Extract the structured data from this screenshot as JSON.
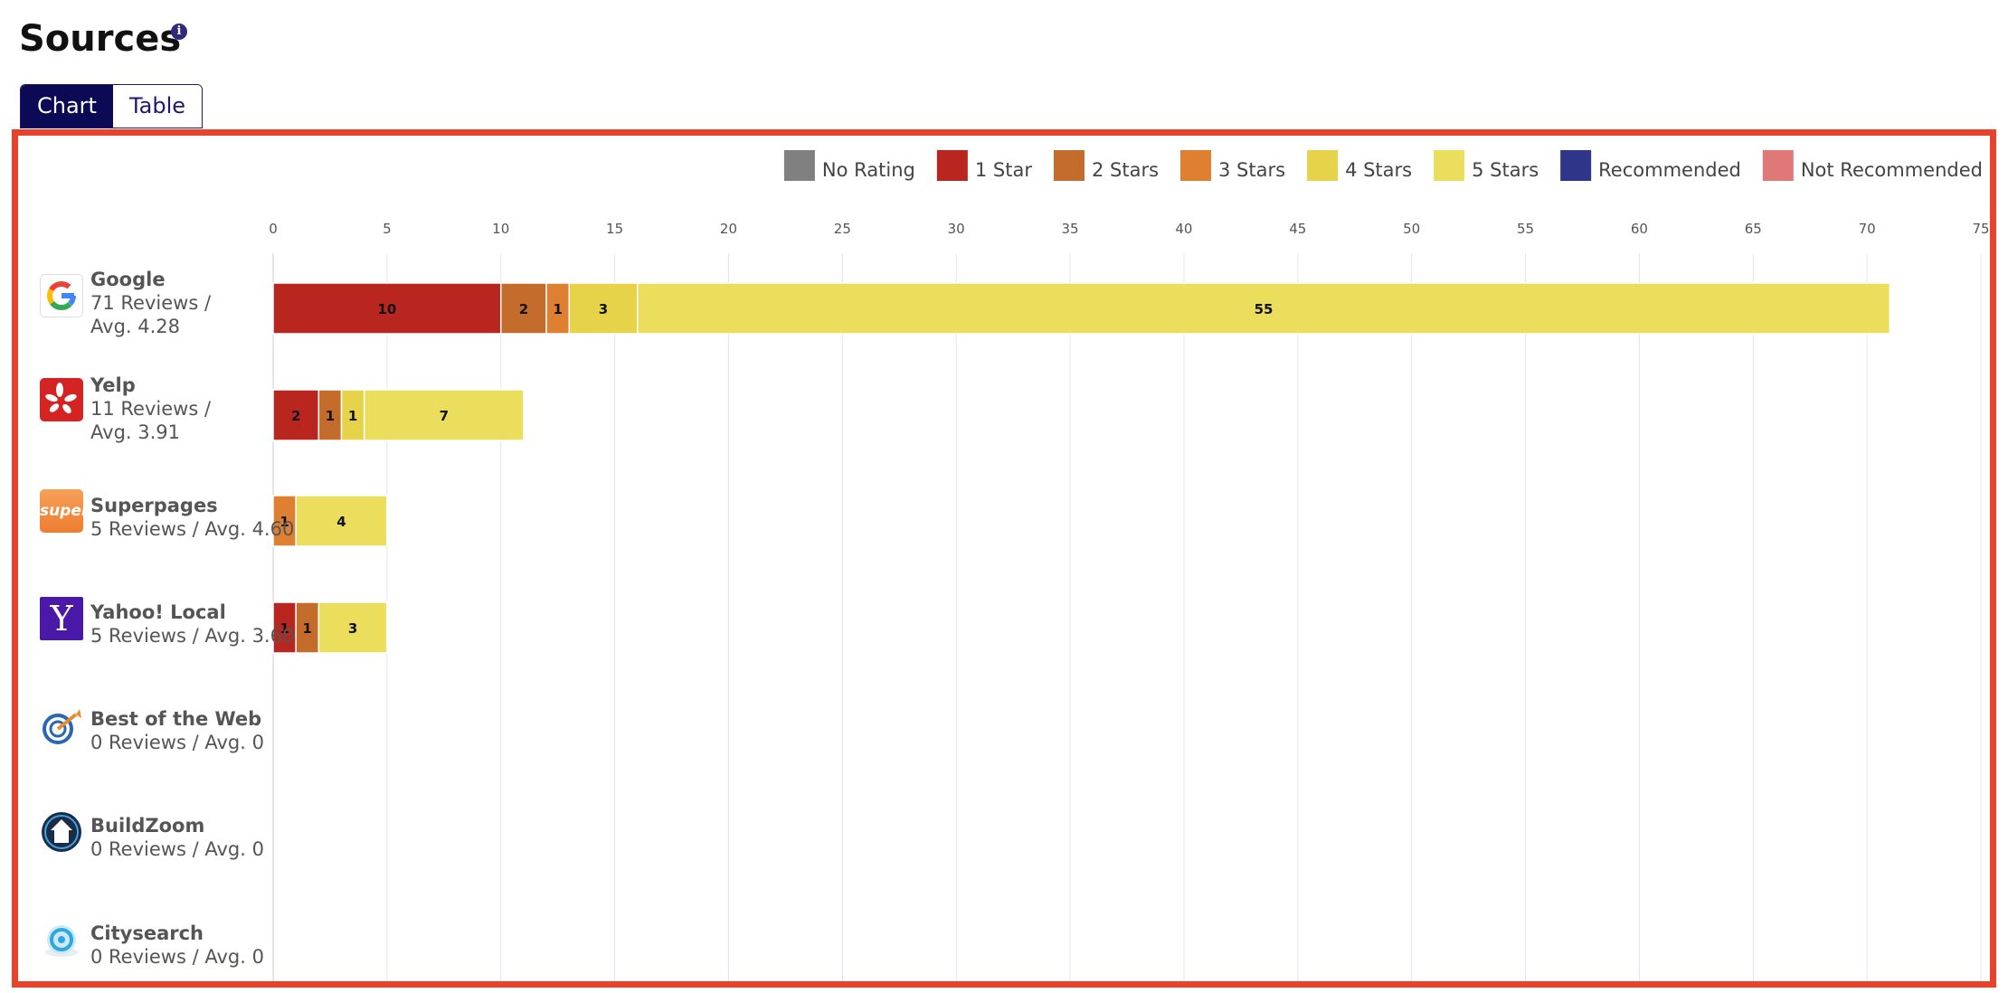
{
  "header": {
    "title": "Sources"
  },
  "tabs": [
    {
      "label": "Chart",
      "active": true
    },
    {
      "label": "Table",
      "active": false
    }
  ],
  "sources": [
    {
      "name": "Google",
      "stats_line1": "71 Reviews /",
      "stats_line2": "Avg. 4.28",
      "icon": "google-logo-icon"
    },
    {
      "name": "Yelp",
      "stats_line1": "11 Reviews /",
      "stats_line2": "Avg. 3.91",
      "icon": "yelp-logo-icon"
    },
    {
      "name": "Superpages",
      "stats_line1": "5 Reviews / Avg. 4.60",
      "stats_line2": "",
      "icon": "superpages-logo-icon",
      "logo_text": "super"
    },
    {
      "name": "Yahoo! Local",
      "stats_line1": "5 Reviews / Avg. 3.60",
      "stats_line2": "",
      "icon": "yahoo-logo-icon",
      "logo_text": "Y"
    },
    {
      "name": "Best of the Web",
      "stats_line1": "0 Reviews / Avg. 0",
      "stats_line2": "",
      "icon": "best-of-the-web-logo-icon"
    },
    {
      "name": "BuildZoom",
      "stats_line1": "0 Reviews / Avg. 0",
      "stats_line2": "",
      "icon": "buildzoom-logo-icon"
    },
    {
      "name": "Citysearch",
      "stats_line1": "0 Reviews / Avg. 0",
      "stats_line2": "",
      "icon": "citysearch-logo-icon"
    }
  ],
  "chart_data": {
    "type": "bar",
    "orientation": "horizontal",
    "stacked": true,
    "title": "",
    "xlabel": "",
    "ylabel": "",
    "xlim": [
      0,
      75
    ],
    "x_ticks": [
      0,
      5,
      10,
      15,
      20,
      25,
      30,
      35,
      40,
      45,
      50,
      55,
      60,
      65,
      70,
      75
    ],
    "grid": true,
    "legend_position": "top-right",
    "categories": [
      "Google",
      "Yelp",
      "Superpages",
      "Yahoo! Local",
      "Best of the Web",
      "BuildZoom",
      "Citysearch"
    ],
    "series": [
      {
        "name": "No Rating",
        "color": "#808080",
        "values": [
          0,
          0,
          0,
          0,
          0,
          0,
          0
        ]
      },
      {
        "name": "1 Star",
        "color": "#b9251f",
        "values": [
          10,
          2,
          0,
          1,
          0,
          0,
          0
        ]
      },
      {
        "name": "2 Stars",
        "color": "#c46c2b",
        "values": [
          2,
          1,
          0,
          1,
          0,
          0,
          0
        ]
      },
      {
        "name": "3 Stars",
        "color": "#df7f31",
        "values": [
          1,
          0,
          1,
          0,
          0,
          0,
          0
        ]
      },
      {
        "name": "4 Stars",
        "color": "#e6d34a",
        "values": [
          3,
          1,
          0,
          0,
          0,
          0,
          0
        ]
      },
      {
        "name": "5 Stars",
        "color": "#ebde5c",
        "values": [
          55,
          7,
          4,
          3,
          0,
          0,
          0
        ]
      },
      {
        "name": "Recommended",
        "color": "#2f3588",
        "values": [
          0,
          0,
          0,
          0,
          0,
          0,
          0
        ]
      },
      {
        "name": "Not Recommended",
        "color": "#e07878",
        "values": [
          0,
          0,
          0,
          0,
          0,
          0,
          0
        ]
      }
    ]
  }
}
